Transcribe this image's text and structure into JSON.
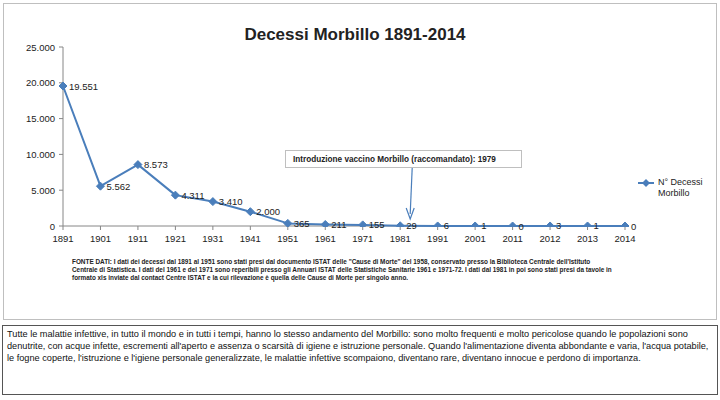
{
  "chart_data": {
    "type": "line",
    "title": "Decessi Morbillo 1891-2014",
    "categories": [
      "1891",
      "1901",
      "1911",
      "1921",
      "1931",
      "1941",
      "1951",
      "1961",
      "1971",
      "1981",
      "1991",
      "2001",
      "2011",
      "2012",
      "2013",
      "2014"
    ],
    "series": [
      {
        "name": "N° Decessi Morbillo",
        "color": "#4a7ebb",
        "marker": "diamond",
        "values": [
          19551,
          5562,
          8573,
          4311,
          3410,
          2000,
          365,
          211,
          155,
          29,
          6,
          1,
          0,
          3,
          1,
          0
        ],
        "value_labels": [
          "19.551",
          "5.562",
          "8.573",
          "4.311",
          "3.410",
          "2.000",
          "365",
          "211",
          "155",
          "29",
          "6",
          "1",
          "0",
          "3",
          "1",
          "0"
        ]
      }
    ],
    "ylim": [
      0,
      25000
    ],
    "yticks": [
      0,
      {
        "value": 5000,
        "label": "5.000"
      },
      {
        "value": 10000,
        "label": "10.000"
      },
      {
        "value": 15000,
        "label": "15.000"
      },
      {
        "value": 20000,
        "label": "20.000"
      },
      {
        "value": 25000,
        "label": "25.000"
      }
    ],
    "grid": false,
    "data_labels": true,
    "legend": "right",
    "annotation": "Introduzione vaccino Morbillo (raccomandato): 1979",
    "source": "FONTE DATI: I dati dei decessi dal 1891 al 1951 sono stati presi dal documento ISTAT delle \"Cause di Morte\" del 1958, conservato presso la Biblioteca Centrale dell'Istituto Centrale di Statistica. I dati del 1961 e del 1971 sono reperibili presso gli Annuari ISTAT delle Statistiche Sanitarie 1961 e 1971-72. I dati dal 1981 in poi sono stati presi da tavole in formato xls inviate dal contact Centre ISTAT e la cui rilevazione è quella delle Cause di Morte per singolo anno."
  },
  "caption": "Tutte le malattie infettive, in tutto il mondo e in tutti i tempi, hanno lo stesso andamento del Morbillo: sono molto frequenti e molto pericolose quando le popolazioni sono denutrite, con acque infette,  escrementi all'aperto e assenza o scarsità di igiene e istruzione personale. Quando l'alimentazione diventa abbondante e varia, l'acqua potabile, le fogne coperte, l'istruzione e l'igiene personale generalizzate, le malattie infettive scompaiono, diventano rare, diventano innocue e perdono di importanza."
}
